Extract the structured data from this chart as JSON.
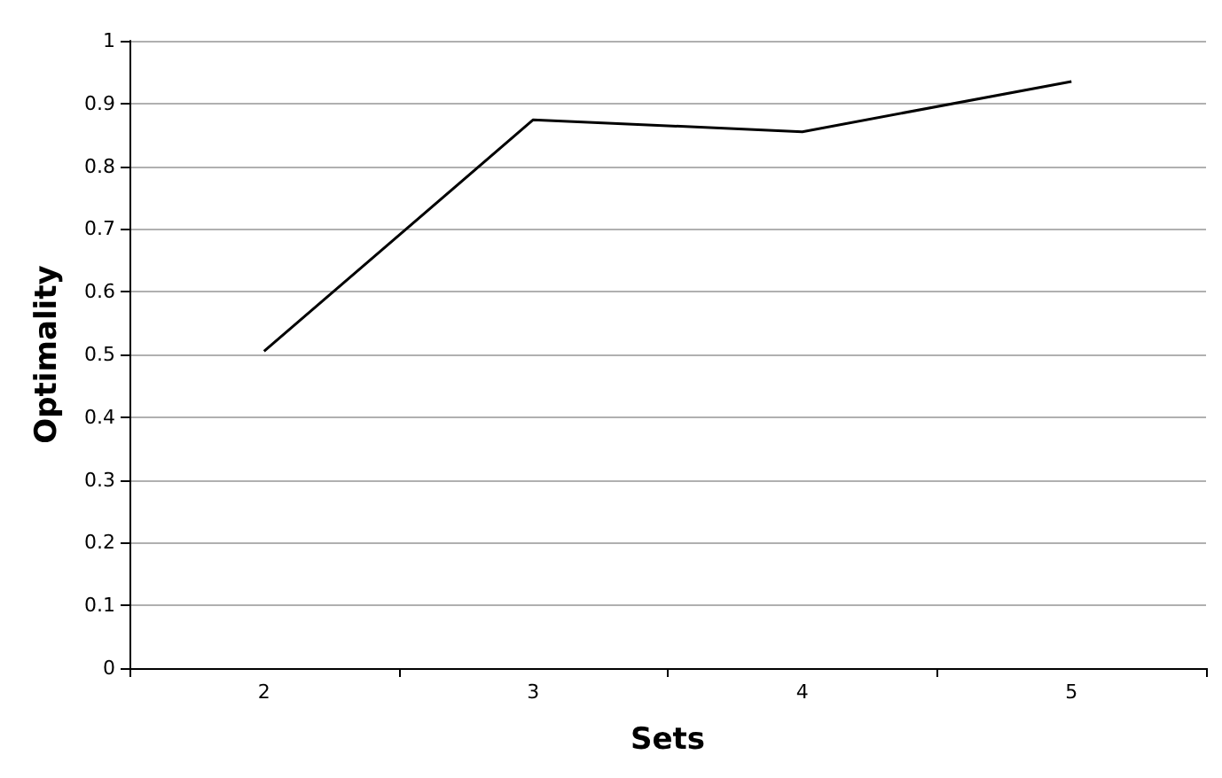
{
  "chart_data": {
    "type": "line",
    "xlabel": "Sets",
    "ylabel": "Optimality",
    "categories": [
      "2",
      "3",
      "4",
      "5"
    ],
    "series": [
      {
        "color": "#000000",
        "values": [
          0.505,
          0.874,
          0.855,
          0.935
        ]
      }
    ],
    "ylim": [
      0,
      1
    ],
    "yticks": [
      0,
      0.1,
      0.2,
      0.3,
      0.4,
      0.5,
      0.6,
      0.7,
      0.8,
      0.9,
      1
    ],
    "grid": "y",
    "marker": "none",
    "line_style": "solid"
  }
}
